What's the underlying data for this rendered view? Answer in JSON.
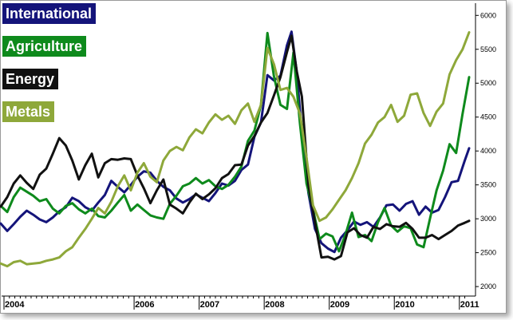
{
  "chart_data": {
    "type": "line",
    "title": "",
    "xlabel": "",
    "ylabel": "",
    "ylim": [
      1860,
      6180
    ],
    "xlim": [
      2004.0,
      2011.15
    ],
    "grid": false,
    "legend_position": "top-left",
    "y_axis_side": "right",
    "y_ticks": [
      2000,
      2500,
      3000,
      3500,
      4000,
      4500,
      5000,
      5500,
      6000
    ],
    "x_ticks": [
      {
        "value": 2004.0,
        "label": "2004"
      },
      {
        "value": 2006.0,
        "label": "2006"
      },
      {
        "value": 2007.0,
        "label": "2007"
      },
      {
        "value": 2008.0,
        "label": "2008"
      },
      {
        "value": 2009.0,
        "label": "2009"
      },
      {
        "value": 2010.0,
        "label": "2010"
      },
      {
        "value": 2011.0,
        "label": "2011"
      }
    ],
    "series": [
      {
        "name": "International",
        "color": "#14147a",
        "points": [
          [
            2003.95,
            2930
          ],
          [
            2004.05,
            2820
          ],
          [
            2004.15,
            2920
          ],
          [
            2004.25,
            3030
          ],
          [
            2004.35,
            3120
          ],
          [
            2004.45,
            3060
          ],
          [
            2004.55,
            2990
          ],
          [
            2004.65,
            2950
          ],
          [
            2004.75,
            3020
          ],
          [
            2004.85,
            3110
          ],
          [
            2004.95,
            3170
          ],
          [
            2005.05,
            3310
          ],
          [
            2005.15,
            3260
          ],
          [
            2005.25,
            3170
          ],
          [
            2005.35,
            3120
          ],
          [
            2005.45,
            3240
          ],
          [
            2005.55,
            3350
          ],
          [
            2005.65,
            3560
          ],
          [
            2005.75,
            3470
          ],
          [
            2005.85,
            3390
          ],
          [
            2005.95,
            3500
          ],
          [
            2006.05,
            3620
          ],
          [
            2006.15,
            3700
          ],
          [
            2006.25,
            3680
          ],
          [
            2006.35,
            3560
          ],
          [
            2006.45,
            3470
          ],
          [
            2006.55,
            3420
          ],
          [
            2006.65,
            3300
          ],
          [
            2006.75,
            3240
          ],
          [
            2006.85,
            3290
          ],
          [
            2006.95,
            3360
          ],
          [
            2007.05,
            3310
          ],
          [
            2007.15,
            3260
          ],
          [
            2007.25,
            3380
          ],
          [
            2007.35,
            3520
          ],
          [
            2007.45,
            3490
          ],
          [
            2007.55,
            3560
          ],
          [
            2007.65,
            3720
          ],
          [
            2007.75,
            3800
          ],
          [
            2007.85,
            4210
          ],
          [
            2007.95,
            4420
          ],
          [
            2008.05,
            5120
          ],
          [
            2008.15,
            5040
          ],
          [
            2008.25,
            5110
          ],
          [
            2008.35,
            5560
          ],
          [
            2008.42,
            5760
          ],
          [
            2008.5,
            5170
          ],
          [
            2008.58,
            4250
          ],
          [
            2008.68,
            3380
          ],
          [
            2008.78,
            2850
          ],
          [
            2008.88,
            2640
          ],
          [
            2008.98,
            2560
          ],
          [
            2009.08,
            2510
          ],
          [
            2009.18,
            2720
          ],
          [
            2009.28,
            2830
          ],
          [
            2009.38,
            2960
          ],
          [
            2009.48,
            2910
          ],
          [
            2009.58,
            2950
          ],
          [
            2009.68,
            2880
          ],
          [
            2009.78,
            3020
          ],
          [
            2009.88,
            3200
          ],
          [
            2009.98,
            3210
          ],
          [
            2010.08,
            3120
          ],
          [
            2010.18,
            3220
          ],
          [
            2010.28,
            3260
          ],
          [
            2010.38,
            3060
          ],
          [
            2010.48,
            3180
          ],
          [
            2010.58,
            3090
          ],
          [
            2010.68,
            3130
          ],
          [
            2010.78,
            3320
          ],
          [
            2010.88,
            3540
          ],
          [
            2010.98,
            3560
          ],
          [
            2011.08,
            3850
          ],
          [
            2011.15,
            4040
          ]
        ]
      },
      {
        "name": "Agriculture",
        "color": "#0e8a1c",
        "points": [
          [
            2003.95,
            3190
          ],
          [
            2004.05,
            3100
          ],
          [
            2004.15,
            3320
          ],
          [
            2004.25,
            3460
          ],
          [
            2004.35,
            3400
          ],
          [
            2004.45,
            3340
          ],
          [
            2004.55,
            3260
          ],
          [
            2004.65,
            3290
          ],
          [
            2004.75,
            3150
          ],
          [
            2004.85,
            3080
          ],
          [
            2004.95,
            3190
          ],
          [
            2005.05,
            3230
          ],
          [
            2005.15,
            3140
          ],
          [
            2005.25,
            3080
          ],
          [
            2005.35,
            3150
          ],
          [
            2005.45,
            3040
          ],
          [
            2005.55,
            3020
          ],
          [
            2005.65,
            3120
          ],
          [
            2005.75,
            3240
          ],
          [
            2005.85,
            3350
          ],
          [
            2005.95,
            3120
          ],
          [
            2006.05,
            3210
          ],
          [
            2006.15,
            3130
          ],
          [
            2006.25,
            3050
          ],
          [
            2006.35,
            3020
          ],
          [
            2006.45,
            3000
          ],
          [
            2006.55,
            3220
          ],
          [
            2006.65,
            3340
          ],
          [
            2006.75,
            3480
          ],
          [
            2006.85,
            3520
          ],
          [
            2006.95,
            3600
          ],
          [
            2007.05,
            3520
          ],
          [
            2007.15,
            3570
          ],
          [
            2007.25,
            3480
          ],
          [
            2007.35,
            3440
          ],
          [
            2007.45,
            3500
          ],
          [
            2007.55,
            3620
          ],
          [
            2007.65,
            3770
          ],
          [
            2007.75,
            4150
          ],
          [
            2007.85,
            4300
          ],
          [
            2007.95,
            4680
          ],
          [
            2008.05,
            5740
          ],
          [
            2008.15,
            5100
          ],
          [
            2008.25,
            4680
          ],
          [
            2008.35,
            4620
          ],
          [
            2008.45,
            5450
          ],
          [
            2008.55,
            4400
          ],
          [
            2008.65,
            3520
          ],
          [
            2008.75,
            3140
          ],
          [
            2008.85,
            2700
          ],
          [
            2008.95,
            2780
          ],
          [
            2009.05,
            2740
          ],
          [
            2009.15,
            2520
          ],
          [
            2009.25,
            2770
          ],
          [
            2009.35,
            3090
          ],
          [
            2009.45,
            2730
          ],
          [
            2009.55,
            2760
          ],
          [
            2009.65,
            2670
          ],
          [
            2009.75,
            2950
          ],
          [
            2009.85,
            3160
          ],
          [
            2009.95,
            2900
          ],
          [
            2010.05,
            2810
          ],
          [
            2010.15,
            2890
          ],
          [
            2010.25,
            2860
          ],
          [
            2010.35,
            2620
          ],
          [
            2010.45,
            2580
          ],
          [
            2010.55,
            3010
          ],
          [
            2010.65,
            3420
          ],
          [
            2010.75,
            3710
          ],
          [
            2010.85,
            4100
          ],
          [
            2010.95,
            3970
          ],
          [
            2011.05,
            4550
          ],
          [
            2011.15,
            5090
          ]
        ]
      },
      {
        "name": "Energy",
        "color": "#111111",
        "points": [
          [
            2003.95,
            3180
          ],
          [
            2004.05,
            3320
          ],
          [
            2004.15,
            3520
          ],
          [
            2004.25,
            3640
          ],
          [
            2004.35,
            3530
          ],
          [
            2004.45,
            3440
          ],
          [
            2004.55,
            3650
          ],
          [
            2004.65,
            3740
          ],
          [
            2004.75,
            3960
          ],
          [
            2004.85,
            4190
          ],
          [
            2004.95,
            4080
          ],
          [
            2005.05,
            3860
          ],
          [
            2005.15,
            3580
          ],
          [
            2005.25,
            3790
          ],
          [
            2005.35,
            3960
          ],
          [
            2005.45,
            3610
          ],
          [
            2005.55,
            3820
          ],
          [
            2005.65,
            3880
          ],
          [
            2005.75,
            3870
          ],
          [
            2005.85,
            3890
          ],
          [
            2005.95,
            3880
          ],
          [
            2006.05,
            3640
          ],
          [
            2006.15,
            3450
          ],
          [
            2006.25,
            3230
          ],
          [
            2006.35,
            3420
          ],
          [
            2006.45,
            3580
          ],
          [
            2006.55,
            3210
          ],
          [
            2006.65,
            3150
          ],
          [
            2006.75,
            3080
          ],
          [
            2006.85,
            3240
          ],
          [
            2006.95,
            3370
          ],
          [
            2007.05,
            3290
          ],
          [
            2007.15,
            3360
          ],
          [
            2007.25,
            3450
          ],
          [
            2007.35,
            3600
          ],
          [
            2007.45,
            3660
          ],
          [
            2007.55,
            3790
          ],
          [
            2007.65,
            3800
          ],
          [
            2007.75,
            4080
          ],
          [
            2007.85,
            4220
          ],
          [
            2007.95,
            4420
          ],
          [
            2008.05,
            4560
          ],
          [
            2008.15,
            4820
          ],
          [
            2008.25,
            5090
          ],
          [
            2008.35,
            5460
          ],
          [
            2008.42,
            5700
          ],
          [
            2008.5,
            5180
          ],
          [
            2008.58,
            4800
          ],
          [
            2008.68,
            3500
          ],
          [
            2008.78,
            2950
          ],
          [
            2008.88,
            2430
          ],
          [
            2008.98,
            2440
          ],
          [
            2009.08,
            2400
          ],
          [
            2009.18,
            2450
          ],
          [
            2009.28,
            2800
          ],
          [
            2009.38,
            2860
          ],
          [
            2009.48,
            2760
          ],
          [
            2009.58,
            2720
          ],
          [
            2009.68,
            2880
          ],
          [
            2009.78,
            2850
          ],
          [
            2009.88,
            2920
          ],
          [
            2009.98,
            2890
          ],
          [
            2010.08,
            2880
          ],
          [
            2010.18,
            2940
          ],
          [
            2010.28,
            2850
          ],
          [
            2010.38,
            2720
          ],
          [
            2010.48,
            2720
          ],
          [
            2010.58,
            2760
          ],
          [
            2010.68,
            2700
          ],
          [
            2010.78,
            2760
          ],
          [
            2010.88,
            2820
          ],
          [
            2010.98,
            2900
          ],
          [
            2011.08,
            2940
          ],
          [
            2011.15,
            2970
          ]
        ]
      },
      {
        "name": "Metals",
        "color": "#8ea83a",
        "points": [
          [
            2003.95,
            2340
          ],
          [
            2004.05,
            2300
          ],
          [
            2004.15,
            2360
          ],
          [
            2004.25,
            2380
          ],
          [
            2004.35,
            2330
          ],
          [
            2004.45,
            2340
          ],
          [
            2004.55,
            2350
          ],
          [
            2004.65,
            2380
          ],
          [
            2004.75,
            2400
          ],
          [
            2004.85,
            2430
          ],
          [
            2004.95,
            2520
          ],
          [
            2005.05,
            2580
          ],
          [
            2005.15,
            2720
          ],
          [
            2005.25,
            2850
          ],
          [
            2005.35,
            3000
          ],
          [
            2005.45,
            3160
          ],
          [
            2005.55,
            3080
          ],
          [
            2005.65,
            3250
          ],
          [
            2005.75,
            3480
          ],
          [
            2005.85,
            3640
          ],
          [
            2005.95,
            3420
          ],
          [
            2006.05,
            3680
          ],
          [
            2006.15,
            3820
          ],
          [
            2006.25,
            3620
          ],
          [
            2006.35,
            3540
          ],
          [
            2006.45,
            3860
          ],
          [
            2006.55,
            4000
          ],
          [
            2006.65,
            4060
          ],
          [
            2006.75,
            4010
          ],
          [
            2006.85,
            4200
          ],
          [
            2006.95,
            4320
          ],
          [
            2007.05,
            4260
          ],
          [
            2007.15,
            4420
          ],
          [
            2007.25,
            4540
          ],
          [
            2007.35,
            4460
          ],
          [
            2007.45,
            4520
          ],
          [
            2007.55,
            4400
          ],
          [
            2007.65,
            4600
          ],
          [
            2007.75,
            4700
          ],
          [
            2007.85,
            4430
          ],
          [
            2007.95,
            4680
          ],
          [
            2008.05,
            5520
          ],
          [
            2008.15,
            5280
          ],
          [
            2008.25,
            4900
          ],
          [
            2008.35,
            4930
          ],
          [
            2008.45,
            4800
          ],
          [
            2008.55,
            4550
          ],
          [
            2008.65,
            3900
          ],
          [
            2008.75,
            3200
          ],
          [
            2008.85,
            2970
          ],
          [
            2008.95,
            3020
          ],
          [
            2009.05,
            3140
          ],
          [
            2009.15,
            3280
          ],
          [
            2009.25,
            3420
          ],
          [
            2009.35,
            3600
          ],
          [
            2009.45,
            3820
          ],
          [
            2009.55,
            4110
          ],
          [
            2009.65,
            4240
          ],
          [
            2009.75,
            4420
          ],
          [
            2009.85,
            4500
          ],
          [
            2009.95,
            4680
          ],
          [
            2010.05,
            4430
          ],
          [
            2010.15,
            4520
          ],
          [
            2010.25,
            4830
          ],
          [
            2010.35,
            4850
          ],
          [
            2010.45,
            4560
          ],
          [
            2010.55,
            4370
          ],
          [
            2010.65,
            4580
          ],
          [
            2010.75,
            4700
          ],
          [
            2010.85,
            5130
          ],
          [
            2010.95,
            5340
          ],
          [
            2011.05,
            5500
          ],
          [
            2011.15,
            5750
          ]
        ]
      }
    ]
  }
}
